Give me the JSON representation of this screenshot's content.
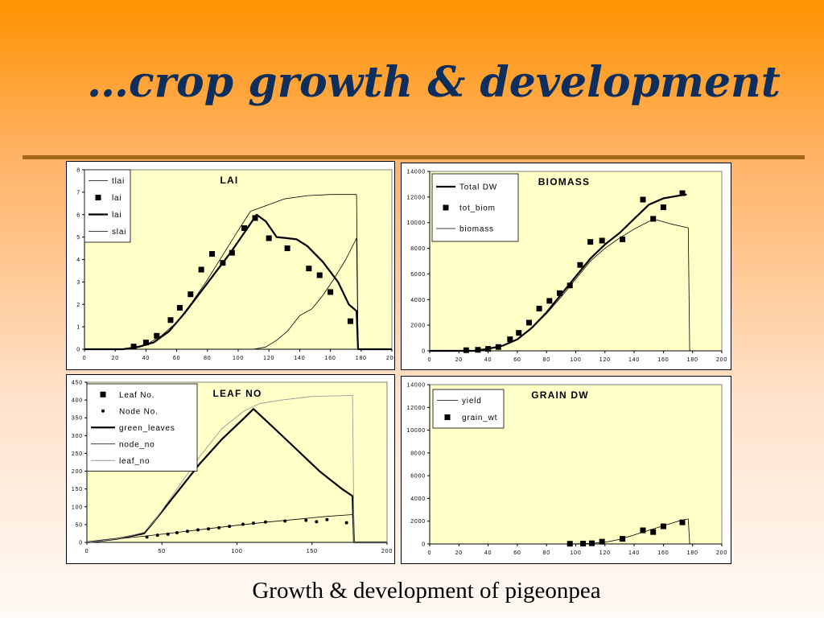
{
  "slide": {
    "title": "…crop growth & development",
    "caption": "Growth & development of pigeonpea"
  },
  "colors": {
    "plot_bg": "#ffffc8",
    "title": "#0e2f5e",
    "rule": "#a5661c"
  },
  "chart_data": [
    {
      "type": "line",
      "title": "LAI",
      "xlim": [
        0,
        200
      ],
      "ylim": [
        0,
        8
      ],
      "x_ticks": [
        "0",
        "20",
        "40",
        "60",
        "80",
        "100",
        "120",
        "140",
        "160",
        "180",
        "200"
      ],
      "y_ticks": [
        "0",
        "1",
        "2",
        "3",
        "4",
        "5",
        "6",
        "7",
        "8"
      ],
      "legend_position": "top-left",
      "series": [
        {
          "name": "tlai",
          "style": "thin",
          "points": [
            [
              0,
              0
            ],
            [
              25,
              0
            ],
            [
              40,
              0.2
            ],
            [
              50,
              0.6
            ],
            [
              60,
              1.2
            ],
            [
              70,
              2.1
            ],
            [
              80,
              3.1
            ],
            [
              90,
              4.2
            ],
            [
              100,
              5.3
            ],
            [
              108,
              6.15
            ],
            [
              120,
              6.45
            ],
            [
              130,
              6.7
            ],
            [
              145,
              6.85
            ],
            [
              160,
              6.9
            ],
            [
              177,
              6.9
            ],
            [
              178,
              0
            ],
            [
              200,
              0
            ]
          ]
        },
        {
          "name": "lai",
          "style": "marker",
          "points": [
            [
              32,
              0.12
            ],
            [
              40,
              0.3
            ],
            [
              47,
              0.6
            ],
            [
              56,
              1.3
            ],
            [
              62,
              1.85
            ],
            [
              69,
              2.45
            ],
            [
              76,
              3.55
            ],
            [
              83,
              4.25
            ],
            [
              90,
              3.85
            ],
            [
              96,
              4.3
            ],
            [
              104,
              5.4
            ],
            [
              111,
              5.85
            ],
            [
              120,
              4.95
            ],
            [
              132,
              4.5
            ],
            [
              146,
              3.6
            ],
            [
              153,
              3.3
            ],
            [
              160,
              2.55
            ],
            [
              173,
              1.25
            ]
          ]
        },
        {
          "name": "lai",
          "style": "thick",
          "points": [
            [
              0,
              0
            ],
            [
              25,
              0
            ],
            [
              35,
              0.1
            ],
            [
              45,
              0.3
            ],
            [
              55,
              0.8
            ],
            [
              65,
              1.6
            ],
            [
              75,
              2.5
            ],
            [
              85,
              3.4
            ],
            [
              95,
              4.3
            ],
            [
              105,
              5.3
            ],
            [
              112,
              6.0
            ],
            [
              118,
              5.7
            ],
            [
              125,
              5.0
            ],
            [
              132,
              4.95
            ],
            [
              138,
              4.9
            ],
            [
              145,
              4.6
            ],
            [
              155,
              3.9
            ],
            [
              165,
              3.0
            ],
            [
              172,
              2.0
            ],
            [
              177,
              1.7
            ],
            [
              178,
              0
            ],
            [
              200,
              0
            ]
          ]
        },
        {
          "name": "slai",
          "style": "thin",
          "points": [
            [
              0,
              0
            ],
            [
              110,
              0
            ],
            [
              118,
              0.1
            ],
            [
              125,
              0.4
            ],
            [
              132,
              0.8
            ],
            [
              140,
              1.5
            ],
            [
              148,
              1.8
            ],
            [
              155,
              2.4
            ],
            [
              162,
              3.1
            ],
            [
              170,
              4.0
            ],
            [
              177,
              4.95
            ],
            [
              178,
              0
            ],
            [
              200,
              0
            ]
          ]
        }
      ]
    },
    {
      "type": "line",
      "title": "BIOMASS",
      "xlim": [
        0,
        200
      ],
      "ylim": [
        0,
        14000
      ],
      "x_ticks": [
        "0",
        "20",
        "40",
        "60",
        "80",
        "100",
        "120",
        "140",
        "160",
        "180",
        "200"
      ],
      "y_ticks": [
        "0",
        "2000",
        "4000",
        "6000",
        "8000",
        "10000",
        "12000",
        "14000"
      ],
      "legend_position": "top-left",
      "series": [
        {
          "name": "Total DW",
          "style": "thick",
          "points": [
            [
              0,
              0
            ],
            [
              30,
              0
            ],
            [
              40,
              150
            ],
            [
              50,
              400
            ],
            [
              60,
              900
            ],
            [
              70,
              1800
            ],
            [
              80,
              3000
            ],
            [
              90,
              4400
            ],
            [
              100,
              5800
            ],
            [
              110,
              7200
            ],
            [
              120,
              8300
            ],
            [
              130,
              9200
            ],
            [
              140,
              10300
            ],
            [
              150,
              11400
            ],
            [
              160,
              11900
            ],
            [
              170,
              12100
            ],
            [
              176,
              12200
            ]
          ]
        },
        {
          "name": "tot_biom",
          "style": "marker",
          "points": [
            [
              25,
              50
            ],
            [
              33,
              80
            ],
            [
              40,
              150
            ],
            [
              47,
              300
            ],
            [
              55,
              900
            ],
            [
              61,
              1400
            ],
            [
              68,
              2200
            ],
            [
              75,
              3300
            ],
            [
              82,
              3900
            ],
            [
              89,
              4500
            ],
            [
              96,
              5100
            ],
            [
              103,
              6700
            ],
            [
              110,
              8500
            ],
            [
              118,
              8600
            ],
            [
              132,
              8700
            ],
            [
              146,
              11800
            ],
            [
              153,
              10300
            ],
            [
              160,
              11200
            ],
            [
              173,
              12300
            ]
          ]
        },
        {
          "name": "biomass",
          "style": "thin",
          "points": [
            [
              0,
              0
            ],
            [
              30,
              0
            ],
            [
              40,
              150
            ],
            [
              50,
              400
            ],
            [
              60,
              900
            ],
            [
              70,
              1800
            ],
            [
              80,
              2900
            ],
            [
              90,
              4200
            ],
            [
              100,
              5600
            ],
            [
              110,
              7000
            ],
            [
              120,
              8000
            ],
            [
              130,
              8800
            ],
            [
              140,
              9500
            ],
            [
              150,
              10100
            ],
            [
              156,
              10200
            ],
            [
              165,
              9900
            ],
            [
              177,
              9600
            ],
            [
              178,
              0
            ],
            [
              200,
              0
            ]
          ]
        }
      ]
    },
    {
      "type": "line",
      "title": "LEAF NO",
      "xlim": [
        0,
        200
      ],
      "ylim": [
        0,
        450
      ],
      "x_ticks": [
        "0",
        "50",
        "100",
        "150",
        "200"
      ],
      "y_ticks": [
        "0",
        "50",
        "100",
        "150",
        "200",
        "250",
        "300",
        "350",
        "400",
        "450"
      ],
      "legend_position": "top-left",
      "series": [
        {
          "name": "Leaf No.",
          "style": "marker",
          "points": []
        },
        {
          "name": "Node No.",
          "style": "dot",
          "points": [
            [
              40,
              15
            ],
            [
              47,
              20
            ],
            [
              54,
              23
            ],
            [
              60,
              27
            ],
            [
              67,
              31
            ],
            [
              74,
              35
            ],
            [
              81,
              38
            ],
            [
              88,
              41
            ],
            [
              95,
              45
            ],
            [
              104,
              51
            ],
            [
              111,
              54
            ],
            [
              119,
              57
            ],
            [
              132,
              60
            ],
            [
              146,
              62
            ],
            [
              153,
              58
            ],
            [
              160,
              64
            ],
            [
              173,
              55
            ]
          ]
        },
        {
          "name": "green_leaves",
          "style": "thick",
          "points": [
            [
              0,
              0
            ],
            [
              20,
              10
            ],
            [
              38,
              25
            ],
            [
              45,
              60
            ],
            [
              60,
              140
            ],
            [
              75,
              220
            ],
            [
              90,
              290
            ],
            [
              105,
              350
            ],
            [
              111,
              375
            ],
            [
              125,
              320
            ],
            [
              140,
              260
            ],
            [
              155,
              200
            ],
            [
              170,
              150
            ],
            [
              177,
              130
            ],
            [
              178,
              0
            ],
            [
              200,
              0
            ]
          ]
        },
        {
          "name": "node_no",
          "style": "thin",
          "points": [
            [
              0,
              0
            ],
            [
              20,
              10
            ],
            [
              40,
              18
            ],
            [
              60,
              28
            ],
            [
              80,
              38
            ],
            [
              100,
              48
            ],
            [
              120,
              57
            ],
            [
              140,
              65
            ],
            [
              160,
              73
            ],
            [
              177,
              78
            ],
            [
              178,
              0
            ],
            [
              200,
              0
            ]
          ]
        },
        {
          "name": "leaf_no",
          "style": "faint",
          "points": [
            [
              0,
              0
            ],
            [
              20,
              10
            ],
            [
              38,
              28
            ],
            [
              45,
              60
            ],
            [
              60,
              150
            ],
            [
              75,
              240
            ],
            [
              90,
              320
            ],
            [
              105,
              370
            ],
            [
              115,
              390
            ],
            [
              130,
              400
            ],
            [
              150,
              410
            ],
            [
              177,
              413
            ],
            [
              178,
              0
            ],
            [
              200,
              0
            ]
          ]
        }
      ]
    },
    {
      "type": "line",
      "title": "GRAIN DW",
      "xlim": [
        0,
        200
      ],
      "ylim": [
        0,
        14000
      ],
      "x_ticks": [
        "0",
        "20",
        "40",
        "60",
        "80",
        "100",
        "120",
        "140",
        "160",
        "180",
        "200"
      ],
      "y_ticks": [
        "0",
        "2000",
        "4000",
        "6000",
        "8000",
        "10000",
        "12000",
        "14000"
      ],
      "legend_position": "top-left",
      "series": [
        {
          "name": "yield",
          "style": "thin",
          "points": [
            [
              0,
              0
            ],
            [
              95,
              0
            ],
            [
              110,
              50
            ],
            [
              120,
              150
            ],
            [
              130,
              400
            ],
            [
              140,
              800
            ],
            [
              150,
              1200
            ],
            [
              160,
              1600
            ],
            [
              170,
              2000
            ],
            [
              177,
              2200
            ],
            [
              178,
              0
            ],
            [
              200,
              0
            ]
          ]
        },
        {
          "name": "grain_wt",
          "style": "marker",
          "points": [
            [
              96,
              20
            ],
            [
              105,
              30
            ],
            [
              111,
              60
            ],
            [
              118,
              200
            ],
            [
              132,
              450
            ],
            [
              146,
              1200
            ],
            [
              153,
              1050
            ],
            [
              160,
              1550
            ],
            [
              173,
              1900
            ]
          ]
        }
      ]
    }
  ]
}
